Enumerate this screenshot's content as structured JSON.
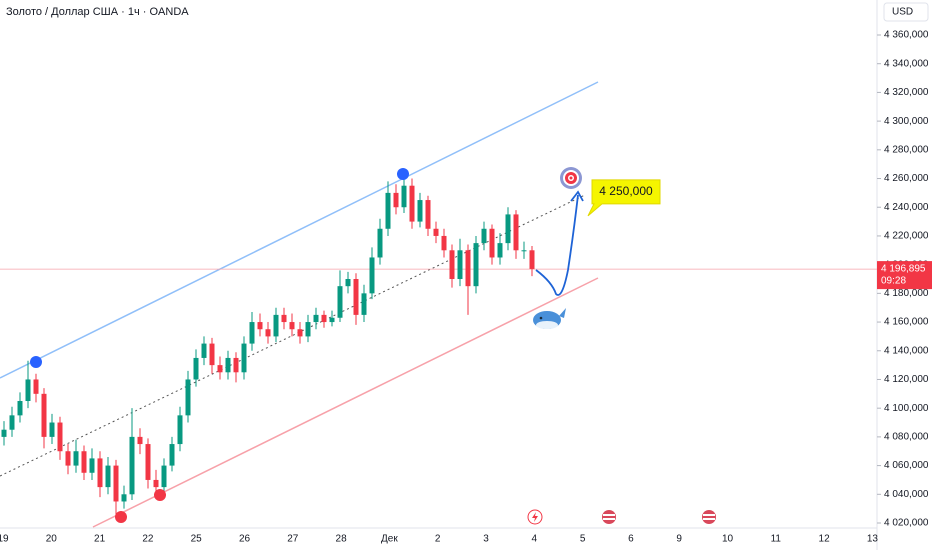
{
  "chart_data": {
    "type": "candlestick",
    "title": "Золото / Доллар США · 1ч · OANDA",
    "currency": "USD",
    "up_color": "#089981",
    "down_color": "#f23645",
    "ylim": [
      4013,
      4373
    ],
    "yticks": [
      {
        "value": 4020,
        "label": "4 020,000"
      },
      {
        "value": 4040,
        "label": "4 040,000"
      },
      {
        "value": 4060,
        "label": "4 060,000"
      },
      {
        "value": 4080,
        "label": "4 080,000"
      },
      {
        "value": 4100,
        "label": "4 100,000"
      },
      {
        "value": 4120,
        "label": "4 120,000"
      },
      {
        "value": 4140,
        "label": "4 140,000"
      },
      {
        "value": 4160,
        "label": "4 160,000"
      },
      {
        "value": 4180,
        "label": "4 180,000"
      },
      {
        "value": 4200,
        "label": "4 200,000"
      },
      {
        "value": 4220,
        "label": "4 220,000"
      },
      {
        "value": 4240,
        "label": "4 240,000"
      },
      {
        "value": 4260,
        "label": "4 260,000"
      },
      {
        "value": 4280,
        "label": "4 280,000"
      },
      {
        "value": 4300,
        "label": "4 300,000"
      },
      {
        "value": 4320,
        "label": "4 320,000"
      },
      {
        "value": 4340,
        "label": "4 340,000"
      },
      {
        "value": 4360,
        "label": "4 360,000"
      }
    ],
    "xticks": [
      "19",
      "20",
      "21",
      "22",
      "25",
      "26",
      "27",
      "28",
      "Дек",
      "2",
      "3",
      "4",
      "5",
      "6",
      "9",
      "10",
      "11",
      "12",
      "13"
    ],
    "open": [
      4080,
      4085,
      4095,
      4105,
      4120,
      4110,
      4080,
      4090,
      4070,
      4060,
      4070,
      4055,
      4065,
      4045,
      4060,
      4035,
      4040,
      4080,
      4075,
      4050,
      4045,
      4060,
      4075,
      4095,
      4120,
      4135,
      4145,
      4130,
      4125,
      4135,
      4125,
      4145,
      4160,
      4155,
      4150,
      4165,
      4160,
      4155,
      4150,
      4160,
      4165,
      4160,
      4163,
      4185,
      4190,
      4165,
      4180,
      4205,
      4225,
      4250,
      4240,
      4255,
      4230,
      4245,
      4225,
      4220,
      4210,
      4190,
      4210,
      4185,
      4215,
      4225,
      4205,
      4215,
      4235,
      4210,
      4210
    ],
    "high": [
      4091,
      4101,
      4111,
      4133,
      4124,
      4114,
      4096,
      4094,
      4075,
      4078,
      4074,
      4072,
      4070,
      4066,
      4064,
      4046,
      4100,
      4086,
      4079,
      4057,
      4065,
      4080,
      4101,
      4126,
      4141,
      4150,
      4149,
      4136,
      4140,
      4139,
      4150,
      4167,
      4166,
      4160,
      4170,
      4170,
      4166,
      4160,
      4165,
      4170,
      4168,
      4168,
      4196,
      4195,
      4194,
      4186,
      4212,
      4232,
      4258,
      4256,
      4262,
      4260,
      4250,
      4248,
      4230,
      4225,
      4214,
      4218,
      4214,
      4220,
      4230,
      4228,
      4222,
      4240,
      4238,
      4216,
      4213
    ],
    "low": [
      4074,
      4080,
      4090,
      4100,
      4104,
      4072,
      4075,
      4064,
      4054,
      4055,
      4050,
      4050,
      4038,
      4040,
      4025,
      4030,
      4036,
      4068,
      4044,
      4038,
      4040,
      4056,
      4070,
      4090,
      4115,
      4130,
      4124,
      4120,
      4120,
      4118,
      4120,
      4140,
      4150,
      4145,
      4146,
      4155,
      4150,
      4145,
      4146,
      4155,
      4156,
      4157,
      4160,
      4180,
      4158,
      4160,
      4176,
      4200,
      4220,
      4235,
      4236,
      4225,
      4226,
      4220,
      4215,
      4205,
      4184,
      4185,
      4165,
      4180,
      4210,
      4200,
      4200,
      4210,
      4204,
      4204,
      4192
    ],
    "close": [
      4085,
      4095,
      4105,
      4120,
      4110,
      4080,
      4090,
      4070,
      4060,
      4070,
      4055,
      4065,
      4045,
      4060,
      4035,
      4040,
      4080,
      4075,
      4050,
      4045,
      4060,
      4075,
      4095,
      4120,
      4135,
      4145,
      4130,
      4125,
      4135,
      4125,
      4145,
      4160,
      4155,
      4150,
      4165,
      4160,
      4155,
      4150,
      4160,
      4165,
      4160,
      4163,
      4185,
      4190,
      4165,
      4180,
      4205,
      4225,
      4250,
      4240,
      4255,
      4230,
      4245,
      4225,
      4220,
      4210,
      4190,
      4210,
      4185,
      4215,
      4225,
      4205,
      4215,
      4235,
      4210,
      4210,
      4197
    ],
    "last_price": {
      "value": 4196.895,
      "label": "4 196,895"
    },
    "countdown": "09:28",
    "target": {
      "value": 4250,
      "label": "4 250,000"
    }
  }
}
